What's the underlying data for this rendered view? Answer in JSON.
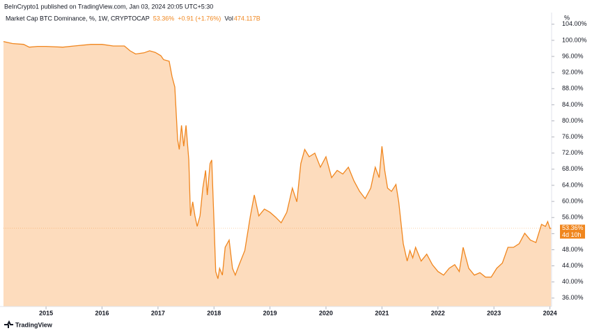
{
  "header": {
    "publisher": "BeInCrypto1 published on TradingView.com, Jan 03, 2024 20:05 UTC+5:30"
  },
  "legend": {
    "symbol": "Market Cap BTC Dominance, %, 1W, CRYPTOCAP",
    "last": "53.36%",
    "change": "+0.91 (+1.76%)",
    "vol_label": "Vol",
    "vol": "474.117B"
  },
  "footer": {
    "brand": "TradingView"
  },
  "chart_data": {
    "type": "area",
    "unit_label": "%",
    "color": "#f0861e",
    "fill": "#fddcbd",
    "price_label": "53.36%",
    "countdown": "4d 10h",
    "xlim": [
      2014.24,
      2024.03
    ],
    "ylim": [
      33.9,
      106.9
    ],
    "xticks": [
      2015,
      2016,
      2017,
      2018,
      2019,
      2020,
      2021,
      2022,
      2023,
      2024
    ],
    "yticks": [
      {
        "value": 36,
        "label": "36.00%"
      },
      {
        "value": 40,
        "label": "40.00%"
      },
      {
        "value": 44,
        "label": "44.00%"
      },
      {
        "value": 48,
        "label": "48.00%"
      },
      {
        "value": 52,
        "label": "52.00%"
      },
      {
        "value": 56,
        "label": "56.00%"
      },
      {
        "value": 60,
        "label": "60.00%"
      },
      {
        "value": 64,
        "label": "64.00%"
      },
      {
        "value": 68,
        "label": "68.00%"
      },
      {
        "value": 72,
        "label": "72.00%"
      },
      {
        "value": 76,
        "label": "76.00%"
      },
      {
        "value": 80,
        "label": "80.00%"
      },
      {
        "value": 84,
        "label": "84.00%"
      },
      {
        "value": 88,
        "label": "88.00%"
      },
      {
        "value": 92,
        "label": "92.00%"
      },
      {
        "value": 96,
        "label": "96.00%"
      },
      {
        "value": 100,
        "label": "100.00%"
      },
      {
        "value": 104,
        "label": "104.00%"
      }
    ],
    "x": [
      2014.24,
      2014.4,
      2014.6,
      2014.7,
      2014.85,
      2015.0,
      2015.3,
      2015.5,
      2015.8,
      2016.0,
      2016.2,
      2016.4,
      2016.5,
      2016.6,
      2016.75,
      2016.85,
      2016.95,
      2017.05,
      2017.1,
      2017.2,
      2017.25,
      2017.3,
      2017.35,
      2017.38,
      2017.42,
      2017.46,
      2017.5,
      2017.55,
      2017.58,
      2017.62,
      2017.66,
      2017.7,
      2017.75,
      2017.8,
      2017.85,
      2017.88,
      2017.93,
      2017.96,
      2018.0,
      2018.03,
      2018.07,
      2018.1,
      2018.15,
      2018.2,
      2018.27,
      2018.33,
      2018.38,
      2018.45,
      2018.55,
      2018.65,
      2018.72,
      2018.8,
      2018.9,
      2019.0,
      2019.1,
      2019.2,
      2019.3,
      2019.4,
      2019.48,
      2019.55,
      2019.62,
      2019.7,
      2019.8,
      2019.9,
      2020.0,
      2020.1,
      2020.2,
      2020.3,
      2020.4,
      2020.5,
      2020.6,
      2020.7,
      2020.8,
      2020.88,
      2020.95,
      2021.0,
      2021.05,
      2021.1,
      2021.17,
      2021.25,
      2021.3,
      2021.38,
      2021.45,
      2021.5,
      2021.55,
      2021.6,
      2021.7,
      2021.8,
      2021.9,
      2022.0,
      2022.1,
      2022.2,
      2022.3,
      2022.38,
      2022.45,
      2022.55,
      2022.65,
      2022.75,
      2022.85,
      2022.95,
      2023.05,
      2023.15,
      2023.25,
      2023.35,
      2023.45,
      2023.55,
      2023.65,
      2023.75,
      2023.85,
      2023.92,
      2023.96,
      2024.0,
      2024.02
    ],
    "values": [
      99.7,
      99.2,
      99,
      98.3,
      98.5,
      98.5,
      98.3,
      98.6,
      99,
      99,
      98.6,
      98.6,
      97.4,
      96.6,
      96.9,
      97.4,
      97,
      96.2,
      95.2,
      94.8,
      91,
      88.4,
      75.4,
      72.9,
      78.9,
      73.7,
      78.9,
      70.3,
      56.4,
      59.9,
      56.4,
      53.8,
      56.4,
      63.3,
      67.7,
      61.6,
      69.4,
      70.3,
      54.7,
      42.6,
      40.8,
      43.4,
      41.7,
      48.6,
      50.4,
      43.4,
      41.7,
      44.3,
      47.8,
      56.4,
      61.6,
      56.4,
      58.1,
      57.3,
      56.1,
      54.7,
      57.3,
      63.3,
      59.9,
      69.4,
      72.9,
      71.1,
      72,
      68.5,
      71.1,
      65.9,
      67.7,
      66.8,
      68.5,
      65.1,
      62.5,
      60.7,
      63.3,
      68.5,
      65.9,
      73.7,
      67.7,
      63.3,
      62.5,
      64.2,
      59.9,
      49.5,
      45.2,
      47.8,
      46,
      48.6,
      45.2,
      46.9,
      44.3,
      42.6,
      41.7,
      43.4,
      44.3,
      42.6,
      48.6,
      43.4,
      41.7,
      42.3,
      41.2,
      41.2,
      43.4,
      44.7,
      48.6,
      48.6,
      49.5,
      52.1,
      50.4,
      49.8,
      54.3,
      53.8,
      55,
      53.3,
      53.36
    ]
  }
}
